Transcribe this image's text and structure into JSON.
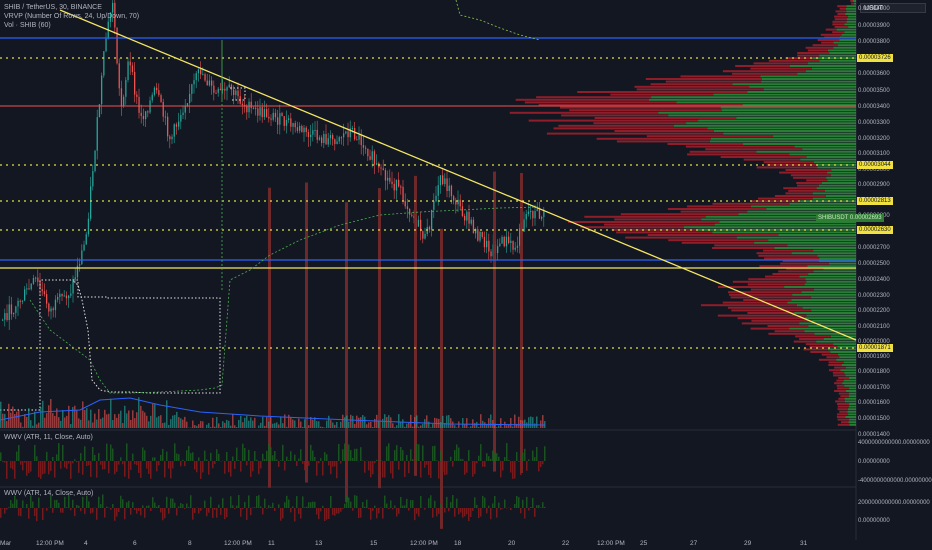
{
  "header": {
    "line1": "SHIB / TetherUS, 30, BINANCE",
    "line2": "VRVP (Number Of Rows, 24, Up/Down, 70)",
    "line3": "Vol · SHIB (60)"
  },
  "currency_button": "USDT",
  "price_axis": {
    "labels": [
      "0.00004000",
      "0.00003900",
      "0.00003800",
      "0.00003600",
      "0.00003500",
      "0.00003400",
      "0.00003300",
      "0.00003200",
      "0.00003100",
      "0.00003000",
      "0.00002900",
      "0.00002800",
      "0.00002700",
      "0.00002500",
      "0.00002400",
      "0.00002300",
      "0.00002200",
      "0.00002100",
      "0.00002000",
      "0.00001900",
      "0.00001800",
      "0.00001700",
      "0.00001600",
      "0.00001500",
      "0.00001400"
    ],
    "tags": [
      "0.00003726",
      "0.00003044",
      "0.00002813",
      "0.00002630",
      "0.00001871"
    ],
    "current_symbol": "SHIBUSDT",
    "current_price": "0.00002693"
  },
  "panes": [
    {
      "legend": "WWV (ATR, 11, Close, Auto)",
      "labels": [
        "4000000000000.00000000",
        "0.00000000",
        "-4000000000000.00000000"
      ]
    },
    {
      "legend": "WWV (ATR, 14, Close, Auto)",
      "labels": [
        "2000000000000.00000000",
        "0.00000000"
      ]
    }
  ],
  "time_axis": [
    "Mar",
    "12:00 PM",
    "4",
    "6",
    "8",
    "12:00 PM",
    "11",
    "13",
    "15",
    "12:00 PM",
    "18",
    "20",
    "22",
    "12:00 PM",
    "25",
    "27",
    "29",
    "31"
  ],
  "colors": {
    "up": "#26a69a",
    "down": "#ef5350",
    "trend": "#f5e663",
    "support": "#2962ff",
    "level": "#e0e040"
  }
}
